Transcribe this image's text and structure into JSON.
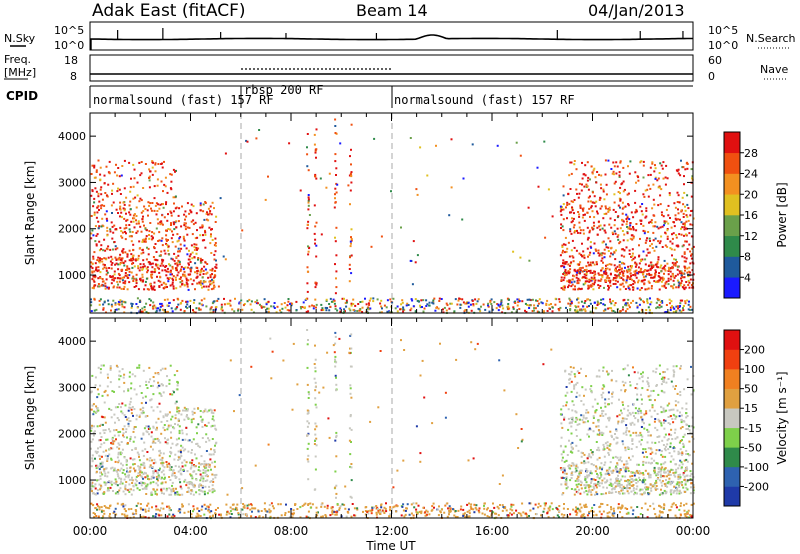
{
  "header": {
    "station": "Adak East (fitACF)",
    "beam": "Beam 14",
    "date": "04/Jan/2013"
  },
  "noise_panel": {
    "left_label": "N.Sky",
    "right_label": "N.Search",
    "left_ticks": [
      "10^5",
      "10^0"
    ],
    "right_ticks": [
      "10^5",
      "10^0"
    ]
  },
  "freq_panel": {
    "left_label": "Freq.",
    "left_unit": "[MHz]",
    "right_label": "Nave",
    "left_ticks": [
      "18",
      "8"
    ],
    "right_ticks": [
      "60",
      "0"
    ]
  },
  "cpid_panel": {
    "label": "CPID",
    "segments": [
      {
        "text": "normalsound (fast) 157 RF",
        "start_hour": 0
      },
      {
        "text": "rbsp 200 RF",
        "start_hour": 6
      },
      {
        "text": "normalsound (fast) 157 RF",
        "start_hour": 12
      }
    ]
  },
  "colors": {
    "power_scale": [
      "#1a1aff",
      "#1f5a9c",
      "#2f8a4a",
      "#6aa04a",
      "#e0c020",
      "#f39020",
      "#f05010",
      "#e01010"
    ],
    "velocity_scale": [
      "#1f3aa8",
      "#2e62b0",
      "#2f8a4a",
      "#7ed04a",
      "#c8c8c0",
      "#e0a040",
      "#f08020",
      "#f04010",
      "#e01010"
    ]
  },
  "chart_data": [
    {
      "type": "heatmap",
      "name": "power",
      "xlabel": "Time UT",
      "ylabel": "Slant Range [km]",
      "xlim": [
        0,
        24
      ],
      "ylim": [
        180,
        4500
      ],
      "x_ticks": [
        "00:00",
        "04:00",
        "08:00",
        "12:00",
        "16:00",
        "20:00",
        "00:00"
      ],
      "y_ticks": [
        1000,
        2000,
        3000,
        4000
      ],
      "colorbar": {
        "label": "Power [dB]",
        "ticks": [
          "28",
          "24",
          "20",
          "16",
          "12",
          "8",
          "4"
        ]
      },
      "echo_regions": [
        {
          "t_start": 0.0,
          "t_end": 5.0,
          "r_min": 600,
          "r_max": 3500,
          "level": "high"
        },
        {
          "t_start": 18.7,
          "t_end": 24.0,
          "r_min": 700,
          "r_max": 3500,
          "level": "high"
        },
        {
          "t_start": 0.0,
          "t_end": 24.0,
          "r_min": 180,
          "r_max": 550,
          "level": "low"
        }
      ]
    },
    {
      "type": "heatmap",
      "name": "velocity",
      "xlabel": "Time UT",
      "ylabel": "Slant Range [km]",
      "xlim": [
        0,
        24
      ],
      "ylim": [
        180,
        4500
      ],
      "x_ticks": [
        "00:00",
        "04:00",
        "08:00",
        "12:00",
        "16:00",
        "20:00",
        "00:00"
      ],
      "y_ticks": [
        1000,
        2000,
        3000,
        4000
      ],
      "colorbar": {
        "label": "Velocity [m s⁻¹]",
        "ticks": [
          "200",
          "100",
          "50",
          "15",
          "-15",
          "-50",
          "-100",
          "-200"
        ]
      },
      "echo_regions": [
        {
          "t_start": 0.0,
          "t_end": 5.0,
          "r_min": 600,
          "r_max": 3500,
          "level": "mixed"
        },
        {
          "t_start": 18.7,
          "t_end": 24.0,
          "r_min": 700,
          "r_max": 3500,
          "level": "mixed"
        },
        {
          "t_start": 0.0,
          "t_end": 24.0,
          "r_min": 180,
          "r_max": 550,
          "level": "low"
        }
      ]
    }
  ],
  "axes": {
    "x_title": "Time UT"
  }
}
